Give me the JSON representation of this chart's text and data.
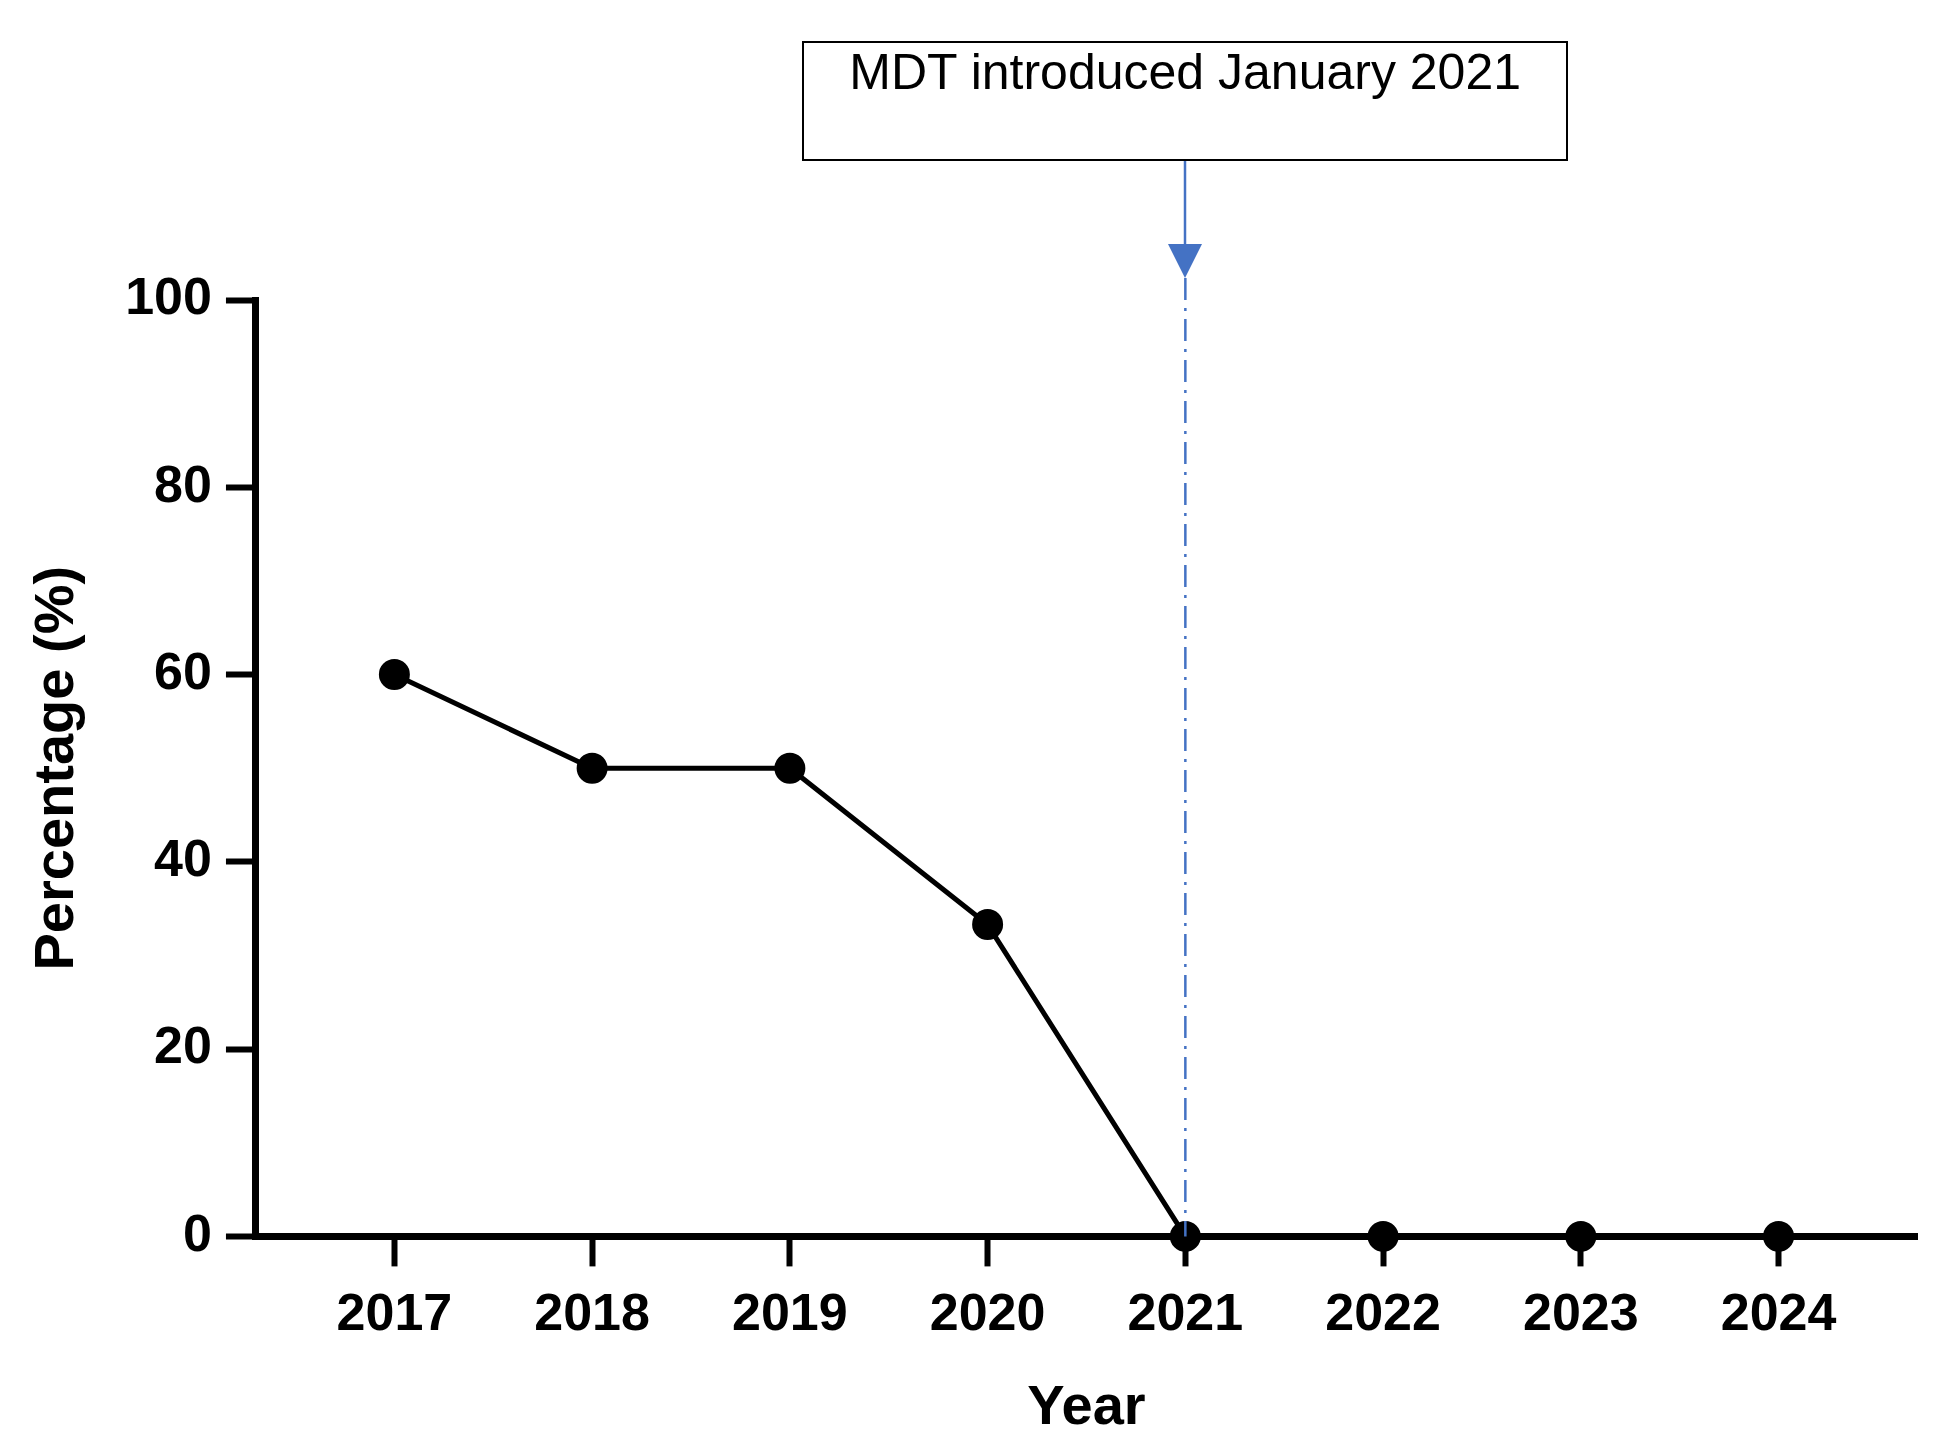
{
  "chart_data": {
    "type": "line",
    "xlabel": "Year",
    "ylabel": "Percentage (%)",
    "x": [
      2017,
      2018,
      2019,
      2020,
      2021,
      2022,
      2023,
      2024
    ],
    "values": [
      60,
      50,
      50,
      33.3,
      0,
      0,
      0,
      0
    ],
    "color": "#000000",
    "marker": "circle",
    "line_style": "solid",
    "grid": false,
    "xlim": [
      2016.3,
      2024.7
    ],
    "xticks": [
      2017,
      2018,
      2019,
      2020,
      2021,
      2022,
      2023,
      2024
    ],
    "ylim": [
      0,
      100
    ],
    "yticks": [
      0,
      20,
      40,
      60,
      80,
      100
    ],
    "ref_lines": [
      {
        "axis": "x",
        "value": 2021,
        "color": "#4472c4",
        "line_style": "dashed"
      }
    ],
    "annotations": [
      "MDT introduced January 2021"
    ]
  }
}
